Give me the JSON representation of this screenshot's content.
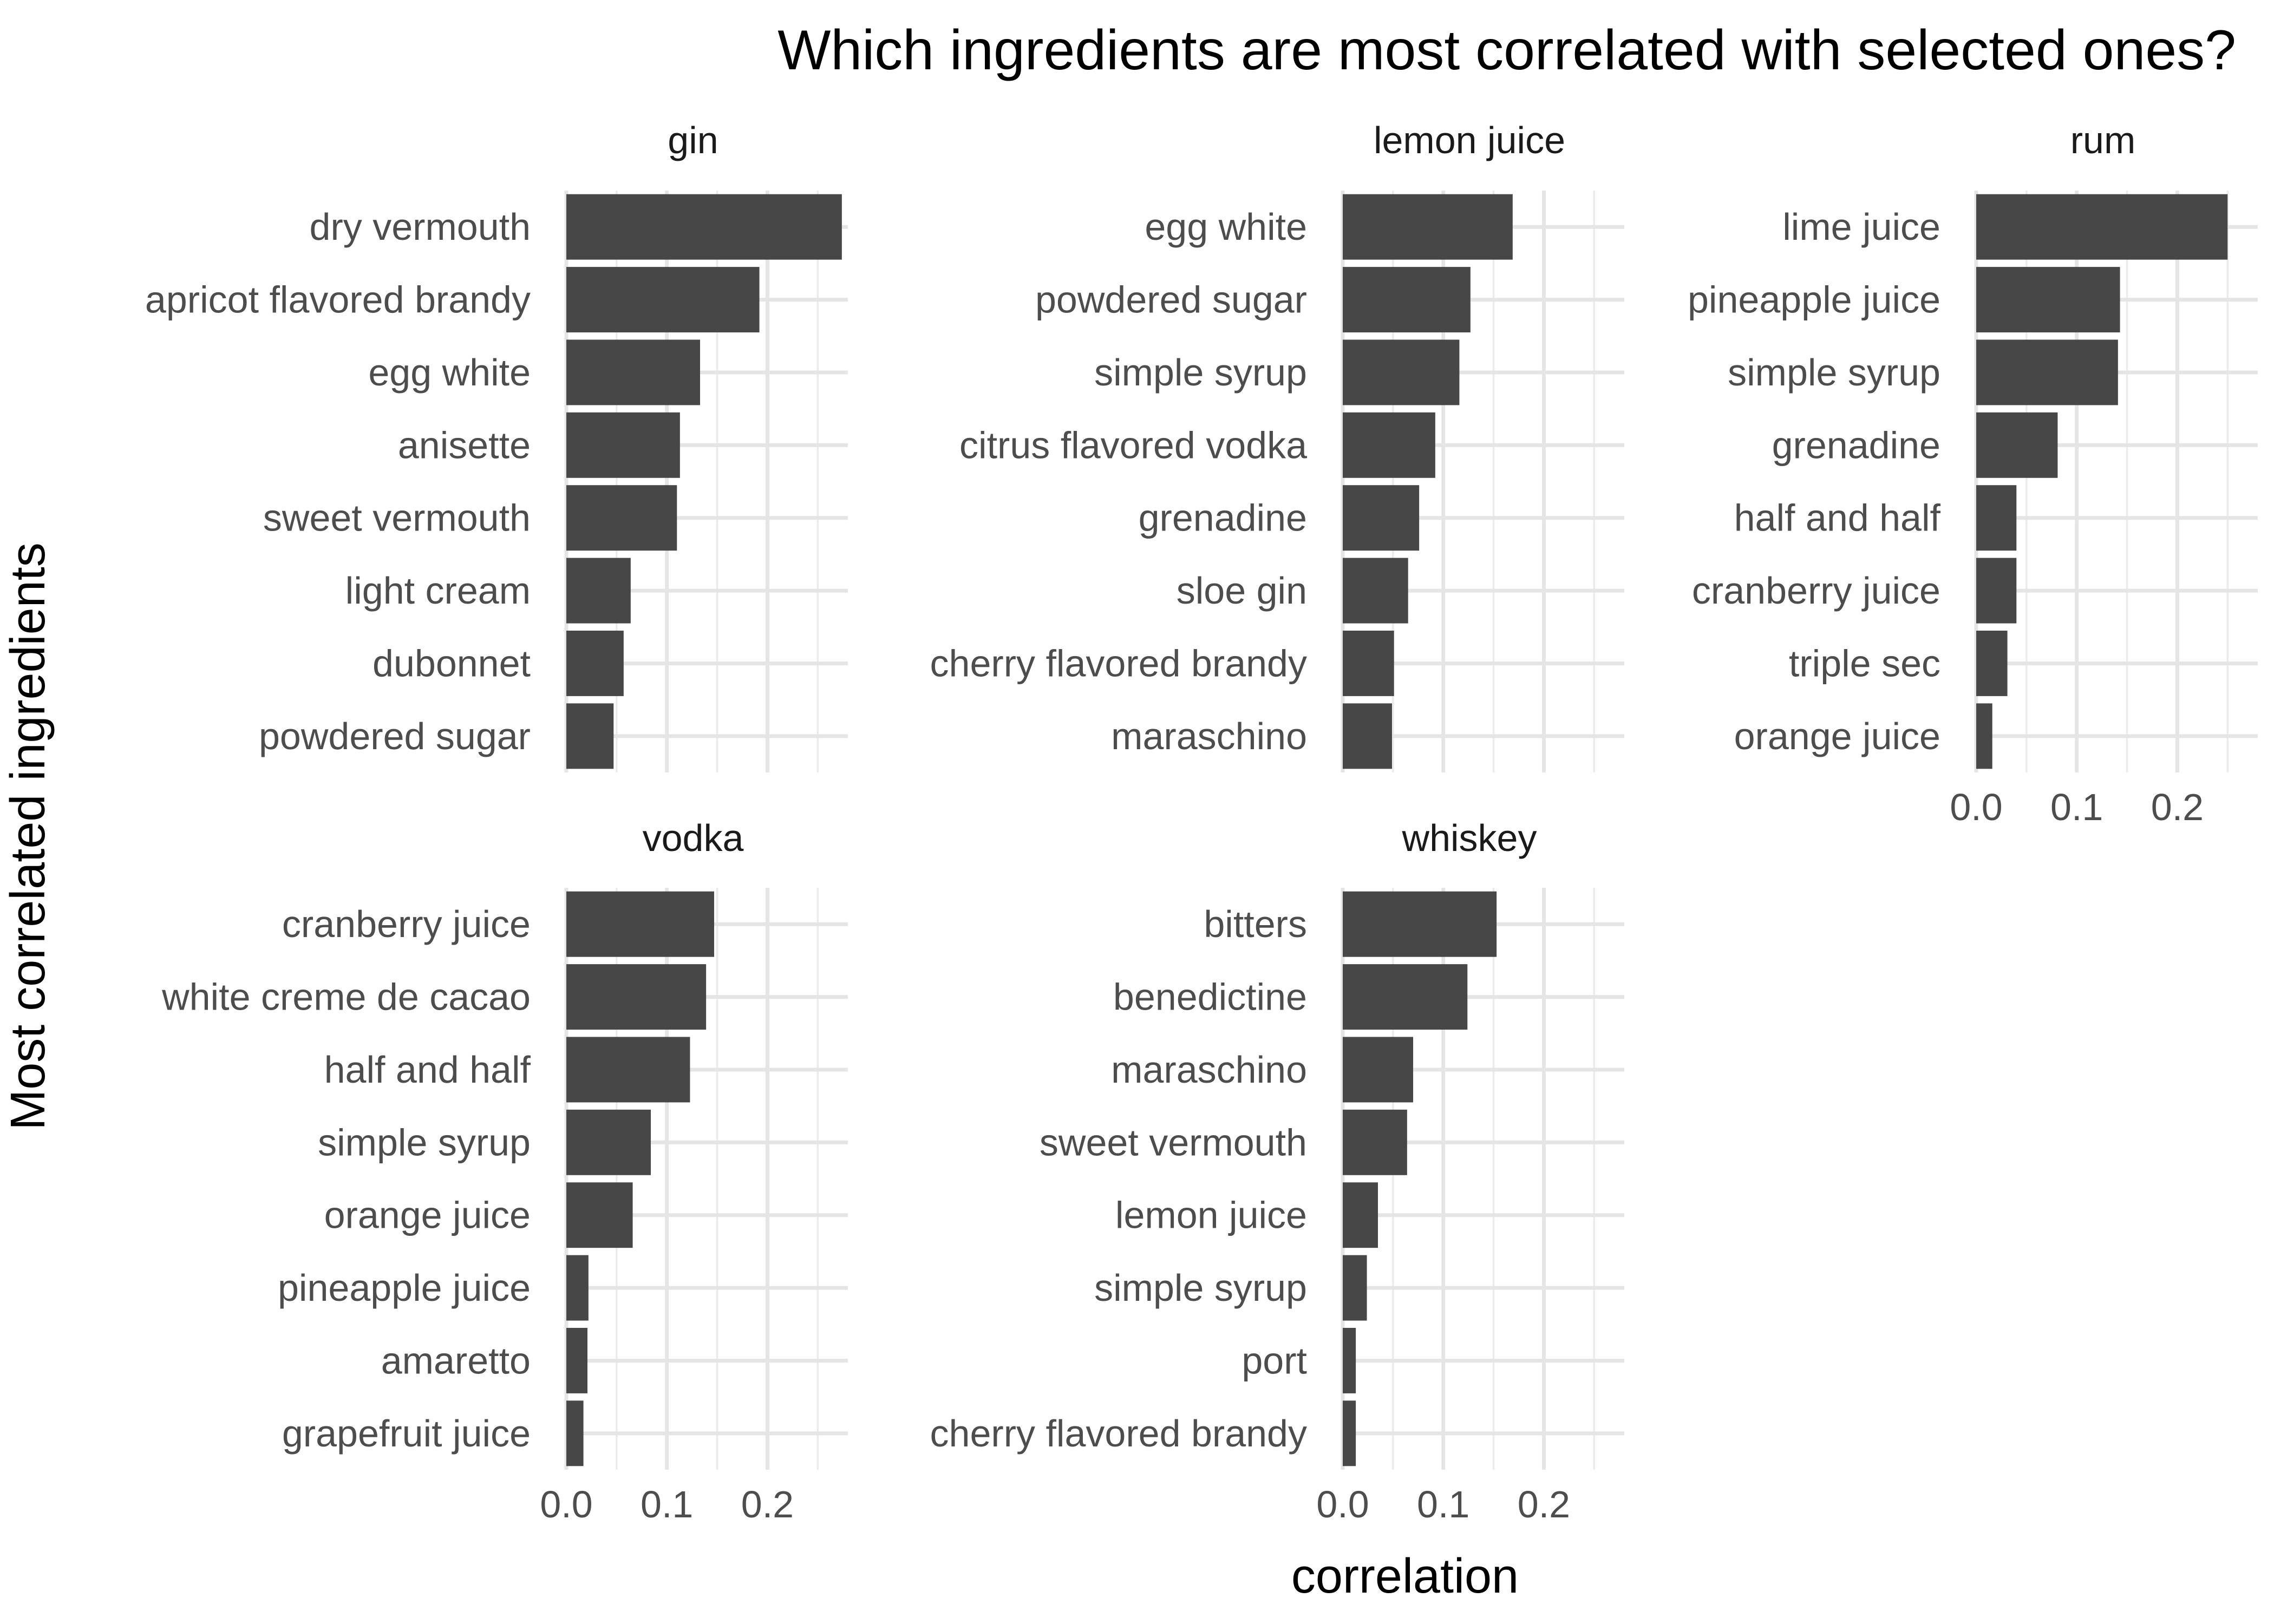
{
  "colors": {
    "bar": "#474747",
    "grid_major": "#e5e5e5",
    "grid_minor": "#ebebeb",
    "background": "#ffffff"
  },
  "chart_data": {
    "type": "bar",
    "orientation": "horizontal",
    "title": "Which ingredients are most correlated with selected ones?",
    "xlabel": "correlation",
    "ylabel": "Most correlated ingredients",
    "xlim": [
      0,
      0.28
    ],
    "xticks": [
      "0.0",
      "0.1",
      "0.2"
    ],
    "grid": true,
    "legend": "none",
    "facets": [
      {
        "name": "gin",
        "categories": [
          "dry vermouth",
          "apricot flavored brandy",
          "egg white",
          "anisette",
          "sweet vermouth",
          "light cream",
          "dubonnet",
          "powdered sugar"
        ],
        "values": [
          0.274,
          0.192,
          0.133,
          0.113,
          0.11,
          0.064,
          0.057,
          0.047
        ]
      },
      {
        "name": "lemon juice",
        "categories": [
          "egg white",
          "powdered sugar",
          "simple syrup",
          "citrus flavored vodka",
          "grenadine",
          "sloe gin",
          "cherry flavored brandy",
          "maraschino"
        ],
        "values": [
          0.169,
          0.127,
          0.116,
          0.092,
          0.076,
          0.065,
          0.051,
          0.049
        ]
      },
      {
        "name": "rum",
        "categories": [
          "lime juice",
          "pineapple juice",
          "simple syrup",
          "grenadine",
          "half and half",
          "cranberry juice",
          "triple sec",
          "orange juice"
        ],
        "values": [
          0.25,
          0.143,
          0.141,
          0.081,
          0.04,
          0.04,
          0.031,
          0.016
        ]
      },
      {
        "name": "vodka",
        "categories": [
          "cranberry juice",
          "white creme de cacao",
          "half and half",
          "simple syrup",
          "orange juice",
          "pineapple juice",
          "amaretto",
          "grapefruit juice"
        ],
        "values": [
          0.147,
          0.139,
          0.123,
          0.084,
          0.066,
          0.022,
          0.021,
          0.017
        ]
      },
      {
        "name": "whiskey",
        "categories": [
          "bitters",
          "benedictine",
          "maraschino",
          "sweet vermouth",
          "lemon juice",
          "simple syrup",
          "port",
          "cherry flavored brandy"
        ],
        "values": [
          0.153,
          0.124,
          0.07,
          0.064,
          0.035,
          0.024,
          0.013,
          0.013
        ]
      }
    ]
  }
}
